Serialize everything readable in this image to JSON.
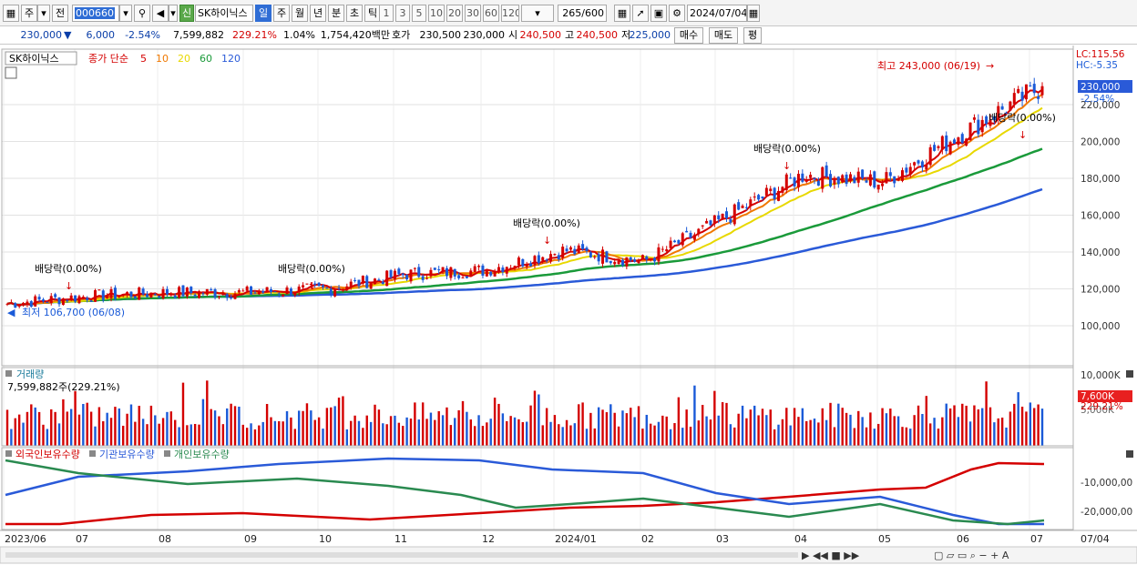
{
  "toolbar": {
    "period_sel": "주",
    "prev_label": "전",
    "code_value": "000660",
    "market_badge": "신",
    "stock_name": "SK하이닉스",
    "interval_tabs": [
      "일",
      "주",
      "월",
      "년",
      "분",
      "초",
      "틱"
    ],
    "interval_active": 0,
    "tick_numbers": [
      "1",
      "3",
      "5",
      "10",
      "20",
      "30",
      "60",
      "120"
    ],
    "count_value": "265",
    "count_total": "/600",
    "date_value": "2024/07/04"
  },
  "quote": {
    "price": "230,000",
    "change": "6,000",
    "change_pct": "-2.54%",
    "volume": "7,599,882",
    "volume_ratio": "229.21%",
    "turnover_pct": "1.04%",
    "amount": "1,754,420백만",
    "bid_label": "호가",
    "bid1": "230,500",
    "bid2": "230,000",
    "open_label": "시",
    "open": "240,500",
    "high_label": "고",
    "high": "240,500",
    "low_label": "저",
    "low": "225,000",
    "buy_label": "매수",
    "sell_label": "매도",
    "flat_label": "평"
  },
  "legend": {
    "stock": "SK하이닉스",
    "ma_title": "종가 단순",
    "ma_periods": [
      "5",
      "10",
      "20",
      "60",
      "120"
    ],
    "ma_colors": [
      "#d40000",
      "#f07800",
      "#e8d800",
      "#1a9a3a",
      "#2a5ad8"
    ]
  },
  "price_panel": {
    "lc_label": "LC:115.56",
    "hc_label": "HC:-5.35",
    "last_price": "230,000",
    "last_pct": "-2.54%",
    "y_ticks": [
      "220,000",
      "200,000",
      "180,000",
      "160,000",
      "140,000",
      "120,000",
      "100,000"
    ],
    "y_tick_values": [
      220000,
      200000,
      180000,
      160000,
      140000,
      120000,
      100000
    ],
    "high_note": "최고 243,000 (06/19)",
    "low_note": "최저 106,700 (06/08)",
    "dividends": [
      "배당락(0.00%)",
      "배당락(0.00%)",
      "배당락(0.00%)",
      "배당락(0.00%)",
      "배당락(0.00%)"
    ]
  },
  "volume_panel": {
    "title": "거래량",
    "value": "7,599,882주(229.21%)",
    "y_top": "10,000K",
    "y_mid": "5,000K",
    "last_value": "7,600K",
    "last_pct": "229.21%"
  },
  "holding_panel": {
    "legend": [
      "외국인보유수량",
      "기관보유수량",
      "개인보유수량"
    ],
    "colors": [
      "#d40000",
      "#2a5ad8",
      "#2a8a50"
    ],
    "y_ticks": [
      "-10,000,00",
      "-20,000,00"
    ]
  },
  "x_axis": {
    "labels": [
      "2023/06",
      "07",
      "08",
      "09",
      "10",
      "11",
      "12",
      "2024/01",
      "02",
      "03",
      "04",
      "05",
      "06",
      "07"
    ],
    "right_label": "07/04"
  },
  "chart_data": [
    {
      "type": "candlestick",
      "title": "SK하이닉스",
      "x_range": [
        "2023/06",
        "2024/07/04"
      ],
      "y_range": [
        95000,
        245000
      ],
      "price_series": {
        "months": [
          "2023/06",
          "07",
          "08",
          "09",
          "10",
          "11",
          "12",
          "2024/01",
          "02",
          "03",
          "04",
          "05",
          "06",
          "07"
        ],
        "close": [
          112000,
          116000,
          118000,
          118000,
          120000,
          128000,
          130000,
          141000,
          135000,
          158000,
          182000,
          178000,
          205000,
          230000
        ]
      },
      "moving_averages": [
        {
          "name": "120",
          "values": [
            88000,
            100000,
            108000,
            114000,
            120000,
            128000,
            138000,
            156000,
            175000
          ]
        },
        {
          "name": "60",
          "values": [
            92000,
            112000,
            118000,
            122000,
            130000,
            145000,
            170000,
            185000,
            198000
          ]
        }
      ],
      "annotations": [
        "최고 243,000 (06/19)",
        "최저 106,700 (06/08)",
        "배당락(0.00%)"
      ]
    },
    {
      "type": "bar",
      "title": "거래량",
      "last_value": 7599882,
      "ylim": [
        0,
        10000000
      ]
    },
    {
      "type": "line",
      "series": [
        {
          "name": "외국인보유수량"
        },
        {
          "name": "기관보유수량"
        },
        {
          "name": "개인보유수량"
        }
      ]
    }
  ]
}
